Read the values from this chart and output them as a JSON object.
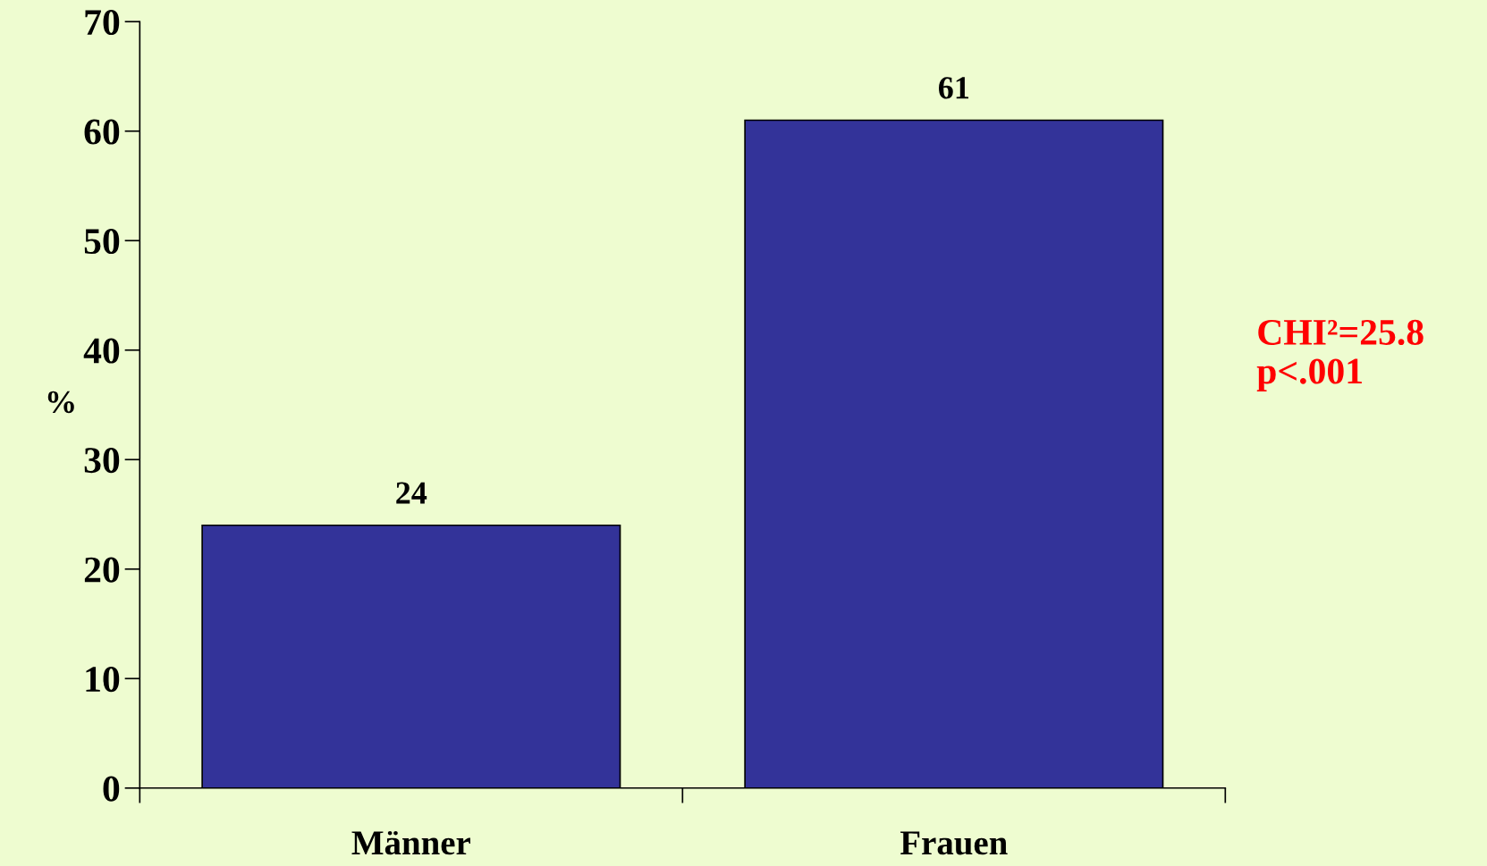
{
  "chart_data": {
    "type": "bar",
    "categories": [
      "Männer",
      "Frauen"
    ],
    "values": [
      24,
      61
    ],
    "color": "#333399",
    "ylabel": "%",
    "ylim": [
      0,
      70
    ],
    "yticks": [
      0,
      10,
      20,
      30,
      40,
      50,
      60,
      70
    ],
    "data_labels": true,
    "annotations": [
      "CHI²=25.8\np<.001"
    ]
  }
}
